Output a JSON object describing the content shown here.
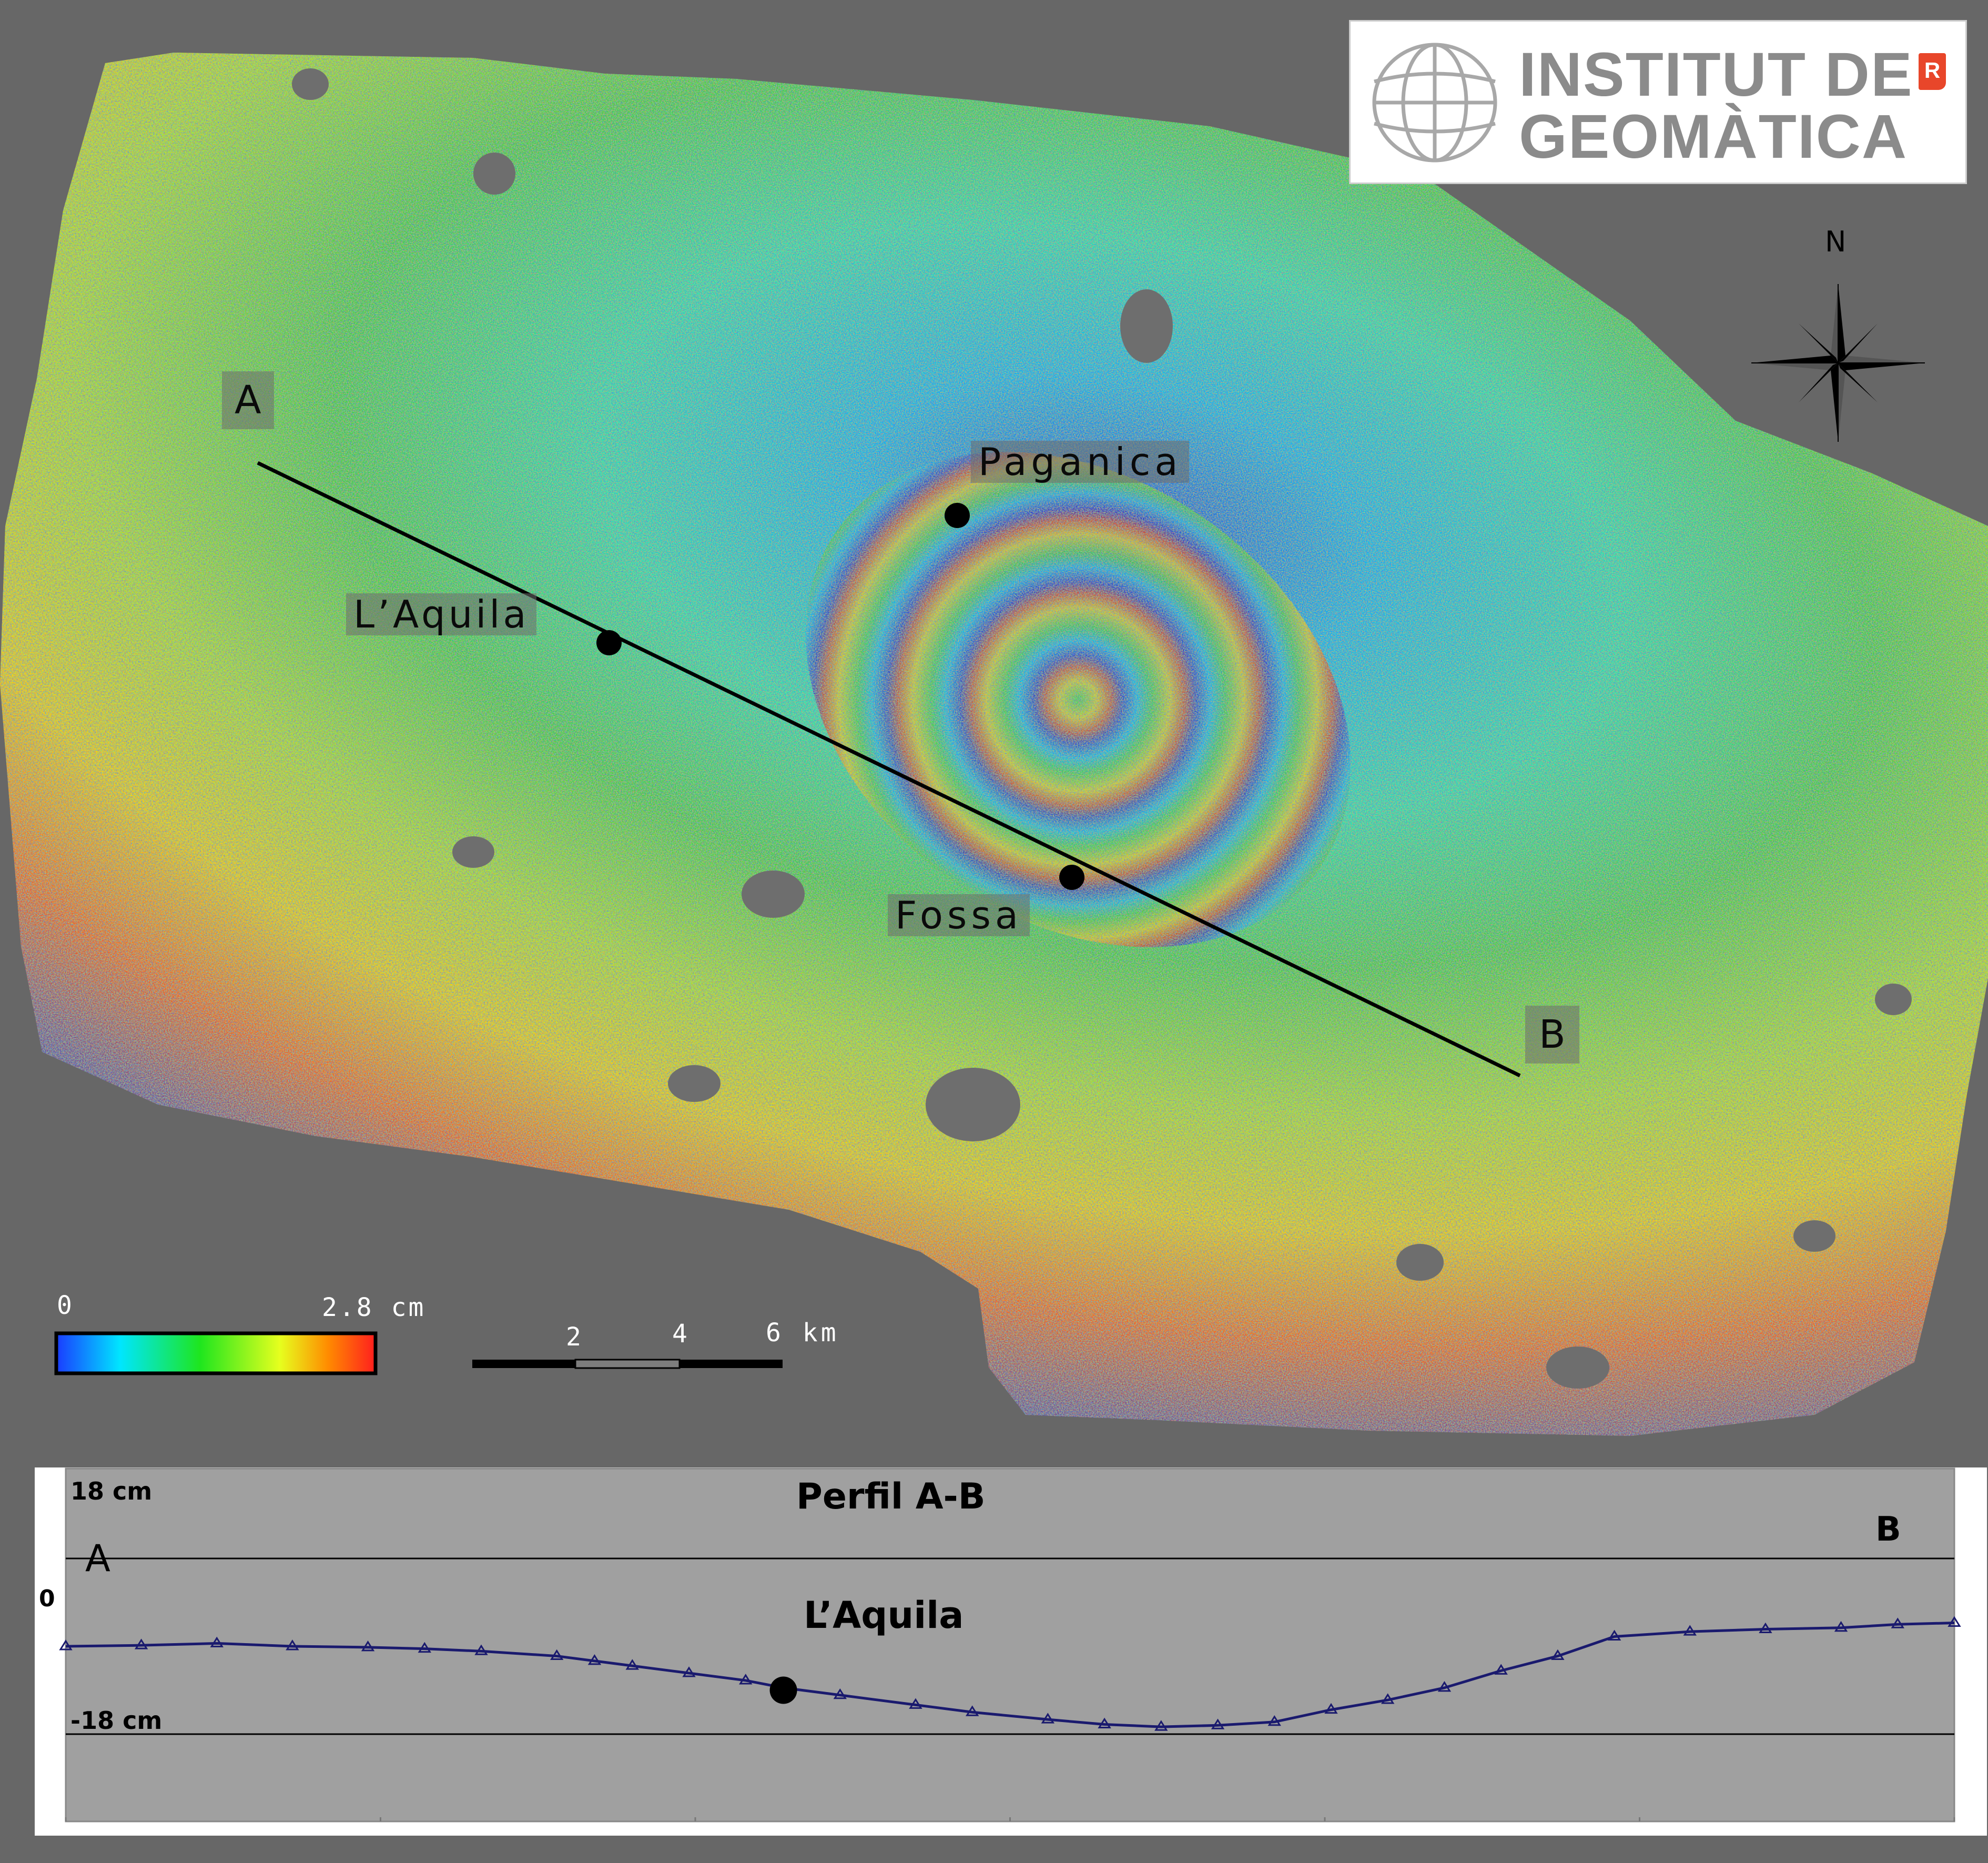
{
  "map": {
    "cities": [
      {
        "name": "Paganica"
      },
      {
        "name": "L’Aquila"
      },
      {
        "name": "Fossa"
      }
    ],
    "line_endpoints": {
      "start": "A",
      "end": "B"
    },
    "north_label": "N",
    "colors": {
      "background": "#676767",
      "fringe_cycle": [
        "#1e3cd6",
        "#00b4ff",
        "#1ee6b4",
        "#3cd23c",
        "#b4e61e",
        "#ffd200",
        "#ff5a14",
        "#c81e1e",
        "#8c1ea0"
      ]
    }
  },
  "logo": {
    "line1": "INSTITUT DE",
    "line2": "GEOMÀTICA",
    "badge": "R"
  },
  "colorbar": {
    "min_label": "0",
    "max_label": "2.8 cm",
    "min_value_cm": 0,
    "max_value_cm": 2.8
  },
  "scale_bar": {
    "labels": [
      "2",
      "4",
      "6 km"
    ]
  },
  "profile": {
    "title": "Perfil A-B",
    "y_top_label": "18 cm",
    "y_zero_label": "0",
    "y_bottom_label": "-18 cm",
    "left_end": "A",
    "right_end": "B",
    "marker_label": "L’Aquila"
  },
  "chart_data": {
    "type": "scatter",
    "title": "Perfil A-B",
    "ylim": [
      -18,
      18
    ],
    "yticks": [
      18,
      0,
      -18
    ],
    "ytick_labels": [
      "18 cm",
      "0",
      "-18 cm"
    ],
    "xlim": [
      0,
      1
    ],
    "x_end_labels": [
      "A",
      "B"
    ],
    "grid": true,
    "marker_color": "#1a1a6e",
    "points": [
      [
        0.0,
        0.0
      ],
      [
        0.04,
        0.2
      ],
      [
        0.08,
        0.6
      ],
      [
        0.12,
        0.0
      ],
      [
        0.16,
        -0.2
      ],
      [
        0.19,
        -0.5
      ],
      [
        0.22,
        -1.0
      ],
      [
        0.26,
        -2.0
      ],
      [
        0.28,
        -3.0
      ],
      [
        0.3,
        -4.0
      ],
      [
        0.33,
        -5.5
      ],
      [
        0.36,
        -7.0
      ],
      [
        0.38,
        -8.5
      ],
      [
        0.41,
        -10.0
      ],
      [
        0.45,
        -12.0
      ],
      [
        0.48,
        -13.5
      ],
      [
        0.52,
        -15.0
      ],
      [
        0.55,
        -16.0
      ],
      [
        0.58,
        -16.5
      ],
      [
        0.61,
        -16.2
      ],
      [
        0.64,
        -15.5
      ],
      [
        0.67,
        -13.0
      ],
      [
        0.7,
        -11.0
      ],
      [
        0.73,
        -8.5
      ],
      [
        0.76,
        -5.0
      ],
      [
        0.79,
        -2.0
      ],
      [
        0.82,
        2.0
      ],
      [
        0.86,
        3.0
      ],
      [
        0.9,
        3.5
      ],
      [
        0.94,
        3.8
      ],
      [
        0.97,
        4.5
      ],
      [
        1.0,
        4.8
      ]
    ],
    "annotation": {
      "label": "L’Aquila",
      "x": 0.38,
      "y": -9.0
    }
  }
}
